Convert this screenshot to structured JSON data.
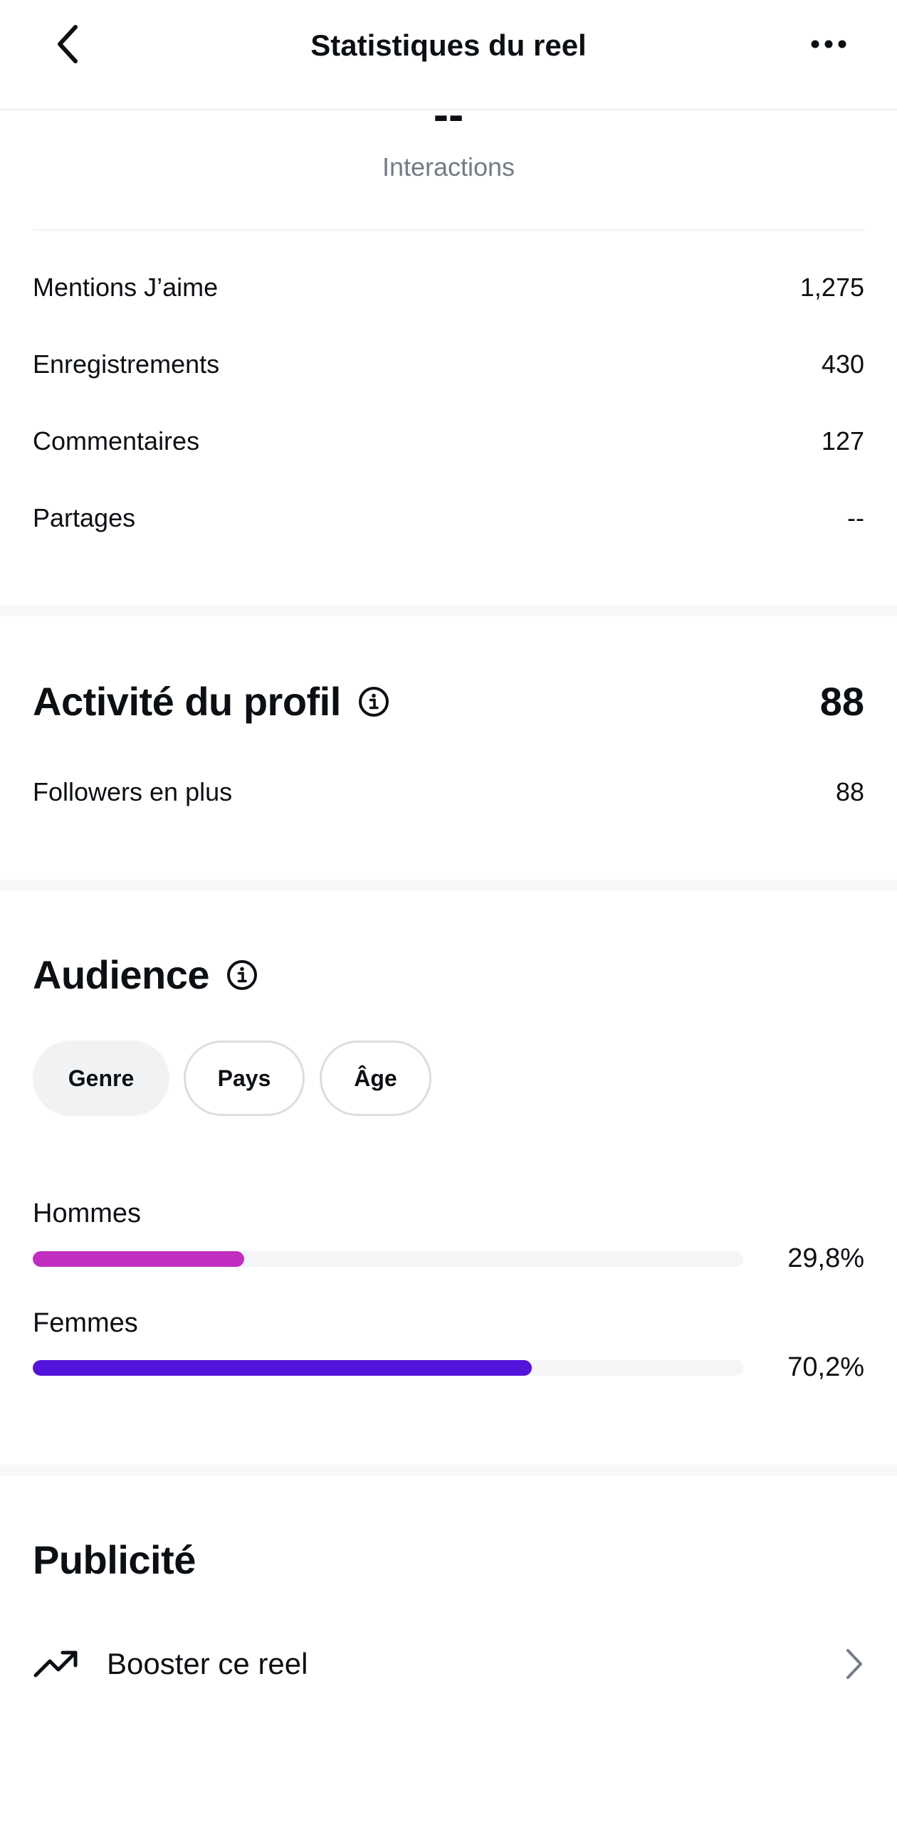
{
  "header": {
    "title": "Statistiques du reel",
    "back_icon": "chevron-left-icon",
    "more_icon": "more-horizontal-icon"
  },
  "interactions": {
    "value": "--",
    "label": "Interactions",
    "rows": [
      {
        "label": "Mentions J’aime",
        "value": "1,275"
      },
      {
        "label": "Enregistrements",
        "value": "430"
      },
      {
        "label": "Commentaires",
        "value": "127"
      },
      {
        "label": "Partages",
        "value": "--"
      }
    ]
  },
  "profile_activity": {
    "title": "Activité du profil",
    "value": "88",
    "rows": [
      {
        "label": "Followers en plus",
        "value": "88"
      }
    ]
  },
  "audience": {
    "title": "Audience",
    "filters": [
      "Genre",
      "Pays",
      "Âge"
    ],
    "selected_filter": "Genre",
    "bars": [
      {
        "label": "Hommes",
        "percent_label": "29,8%",
        "fraction": 0.298,
        "color": "#c02ec0"
      },
      {
        "label": "Femmes",
        "percent_label": "70,2%",
        "fraction": 0.702,
        "color": "#5214da"
      }
    ]
  },
  "ads": {
    "title": "Publicité",
    "boost_label": "Booster ce reel",
    "boost_icon": "trending-up-icon",
    "chevron_icon": "chevron-right-icon"
  }
}
